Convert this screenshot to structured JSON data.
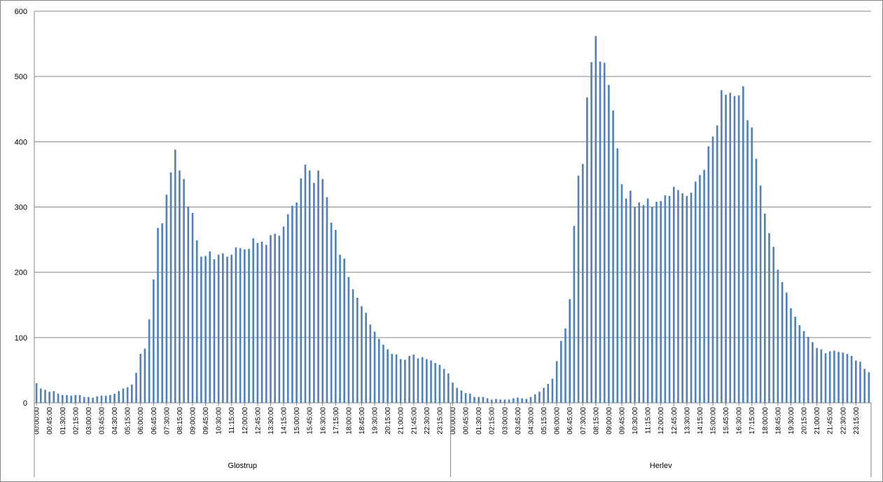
{
  "chart_data": {
    "type": "bar",
    "bar_color": "#4f81bd",
    "grid": true,
    "legend": "none",
    "ylim": [
      0,
      600
    ],
    "yticks": [
      "0",
      "100",
      "200",
      "300",
      "400",
      "500",
      "600"
    ],
    "groups": [
      {
        "name": "Glostrup",
        "x_start": "00:00:00",
        "interval_minutes": 15,
        "tick_labels": [
          "00:00:00",
          "00:45:00",
          "01:30:00",
          "02:15:00",
          "03:00:00",
          "03:45:00",
          "04:30:00",
          "05:15:00",
          "06:00:00",
          "06:45:00",
          "07:30:00",
          "08:15:00",
          "09:00:00",
          "09:45:00",
          "10:30:00",
          "11:15:00",
          "12:00:00",
          "12:45:00",
          "13:30:00",
          "14:15:00",
          "15:00:00",
          "15:45:00",
          "16:30:00",
          "17:15:00",
          "18:00:00",
          "18:45:00",
          "19:30:00",
          "20:15:00",
          "21:00:00",
          "21:45:00",
          "22:30:00",
          "23:15:00"
        ],
        "values": [
          30,
          22,
          20,
          17,
          18,
          14,
          12,
          12,
          11,
          12,
          12,
          9,
          9,
          8,
          10,
          11,
          11,
          12,
          14,
          18,
          22,
          24,
          28,
          46,
          75,
          83,
          128,
          189,
          268,
          275,
          319,
          353,
          388,
          356,
          343,
          301,
          291,
          249,
          224,
          225,
          232,
          220,
          227,
          229,
          224,
          227,
          238,
          237,
          235,
          236,
          252,
          245,
          247,
          242,
          257,
          259,
          256,
          270,
          289,
          302,
          307,
          344,
          365,
          356,
          337,
          356,
          343,
          315,
          276,
          265,
          227,
          221,
          193,
          174,
          161,
          148,
          138,
          120,
          109,
          98,
          89,
          82,
          75,
          74,
          67,
          66,
          72,
          74,
          68,
          70,
          67,
          65,
          61,
          58,
          52,
          45
        ]
      },
      {
        "name": "Herlev",
        "x_start": "00:00:00",
        "interval_minutes": 15,
        "tick_labels": [
          "00:00:00",
          "00:45:00",
          "01:30:00",
          "02:15:00",
          "03:00:00",
          "03:45:00",
          "04:30:00",
          "05:15:00",
          "06:00:00",
          "06:45:00",
          "07:30:00",
          "08:15:00",
          "09:00:00",
          "09:45:00",
          "10:30:00",
          "11:15:00",
          "12:00:00",
          "12:45:00",
          "13:30:00",
          "14:15:00",
          "15:00:00",
          "15:45:00",
          "16:30:00",
          "17:15:00",
          "18:00:00",
          "18:45:00",
          "19:30:00",
          "20:15:00",
          "21:00:00",
          "21:45:00",
          "22:30:00",
          "23:15:00"
        ],
        "values": [
          31,
          23,
          19,
          15,
          14,
          9,
          9,
          9,
          7,
          5,
          6,
          5,
          5,
          5,
          7,
          8,
          7,
          6,
          9,
          13,
          17,
          23,
          29,
          37,
          64,
          95,
          114,
          159,
          271,
          348,
          366,
          468,
          522,
          562,
          523,
          521,
          487,
          448,
          390,
          335,
          313,
          325,
          300,
          307,
          303,
          313,
          300,
          308,
          309,
          318,
          317,
          331,
          326,
          321,
          317,
          322,
          339,
          349,
          357,
          393,
          408,
          425,
          479,
          472,
          475,
          470,
          471,
          485,
          433,
          422,
          374,
          333,
          290,
          260,
          239,
          204,
          185,
          169,
          145,
          132,
          119,
          110,
          101,
          93,
          84,
          82,
          76,
          79,
          80,
          78,
          77,
          75,
          72,
          65,
          63,
          52,
          47
        ]
      }
    ]
  }
}
